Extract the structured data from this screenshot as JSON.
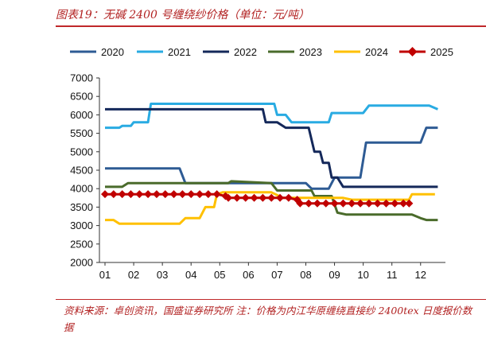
{
  "figure": {
    "title": "图表19：无碱 2400 号缠绕纱价格（单位：元/吨）",
    "source": "资料来源：卓创资讯，国盛证券研究所   注：价格为内江华原缠绕直接纱 2400tex 日度报价数据"
  },
  "chart_data": {
    "type": "line",
    "title": "",
    "xlabel": "",
    "ylabel": "",
    "x_tick_labels": [
      "01",
      "02",
      "03",
      "04",
      "05",
      "06",
      "07",
      "08",
      "09",
      "10",
      "11",
      "12"
    ],
    "ylim": [
      2000,
      7000
    ],
    "y_ticks": [
      2000,
      2500,
      3000,
      3500,
      4000,
      4500,
      5000,
      5500,
      6000,
      6500,
      7000
    ],
    "grid": false,
    "legend_position": "top",
    "series": [
      {
        "name": "2020",
        "color": "#2e5b94",
        "points": [
          [
            1.0,
            4550
          ],
          [
            3.6,
            4550
          ],
          [
            3.8,
            4150
          ],
          [
            7.2,
            4150
          ],
          [
            8.0,
            4150
          ],
          [
            8.2,
            4000
          ],
          [
            8.8,
            4000
          ],
          [
            9.0,
            4300
          ],
          [
            9.9,
            4300
          ],
          [
            10.1,
            5250
          ],
          [
            11.0,
            5250
          ],
          [
            12.0,
            5250
          ],
          [
            12.2,
            5650
          ],
          [
            12.6,
            5650
          ]
        ]
      },
      {
        "name": "2021",
        "color": "#29abe2",
        "points": [
          [
            1.0,
            5650
          ],
          [
            1.5,
            5650
          ],
          [
            1.6,
            5700
          ],
          [
            1.9,
            5700
          ],
          [
            2.0,
            5800
          ],
          [
            2.5,
            5800
          ],
          [
            2.6,
            6300
          ],
          [
            6.5,
            6300
          ],
          [
            6.9,
            6300
          ],
          [
            7.0,
            6000
          ],
          [
            7.3,
            6000
          ],
          [
            7.5,
            5800
          ],
          [
            8.0,
            5800
          ],
          [
            8.8,
            5800
          ],
          [
            8.9,
            6050
          ],
          [
            10.0,
            6050
          ],
          [
            10.2,
            6250
          ],
          [
            11.5,
            6250
          ],
          [
            12.3,
            6250
          ],
          [
            12.6,
            6150
          ]
        ]
      },
      {
        "name": "2022",
        "color": "#14285a",
        "points": [
          [
            1.0,
            6150
          ],
          [
            6.5,
            6150
          ],
          [
            6.6,
            5800
          ],
          [
            7.0,
            5800
          ],
          [
            7.3,
            5650
          ],
          [
            8.1,
            5650
          ],
          [
            8.3,
            5000
          ],
          [
            8.5,
            5000
          ],
          [
            8.6,
            4700
          ],
          [
            8.8,
            4700
          ],
          [
            8.9,
            4300
          ],
          [
            9.1,
            4300
          ],
          [
            9.3,
            4050
          ],
          [
            12.6,
            4050
          ]
        ]
      },
      {
        "name": "2023",
        "color": "#4a6b2b",
        "points": [
          [
            1.0,
            4050
          ],
          [
            1.6,
            4050
          ],
          [
            1.8,
            4150
          ],
          [
            5.3,
            4150
          ],
          [
            5.4,
            4200
          ],
          [
            6.8,
            4150
          ],
          [
            7.0,
            3950
          ],
          [
            8.2,
            3950
          ],
          [
            8.3,
            3800
          ],
          [
            8.9,
            3800
          ],
          [
            9.1,
            3350
          ],
          [
            9.4,
            3300
          ],
          [
            11.0,
            3300
          ],
          [
            11.7,
            3300
          ],
          [
            12.0,
            3200
          ],
          [
            12.2,
            3150
          ],
          [
            12.6,
            3150
          ]
        ]
      },
      {
        "name": "2024",
        "color": "#ffc000",
        "points": [
          [
            1.0,
            3150
          ],
          [
            1.3,
            3150
          ],
          [
            1.5,
            3050
          ],
          [
            3.6,
            3050
          ],
          [
            3.8,
            3200
          ],
          [
            4.3,
            3200
          ],
          [
            4.5,
            3500
          ],
          [
            4.8,
            3500
          ],
          [
            4.9,
            3850
          ],
          [
            5.1,
            3900
          ],
          [
            6.8,
            3900
          ],
          [
            7.2,
            3750
          ],
          [
            9.3,
            3750
          ],
          [
            9.6,
            3700
          ],
          [
            11.6,
            3700
          ],
          [
            11.7,
            3850
          ],
          [
            12.5,
            3850
          ]
        ]
      },
      {
        "name": "2025",
        "color": "#c00000",
        "marker": "diamond",
        "points": [
          [
            1.0,
            3850
          ],
          [
            1.3,
            3850
          ],
          [
            1.6,
            3850
          ],
          [
            1.9,
            3850
          ],
          [
            2.2,
            3850
          ],
          [
            2.5,
            3850
          ],
          [
            2.8,
            3850
          ],
          [
            3.1,
            3850
          ],
          [
            3.4,
            3850
          ],
          [
            3.7,
            3850
          ],
          [
            4.0,
            3850
          ],
          [
            4.3,
            3850
          ],
          [
            4.6,
            3850
          ],
          [
            4.9,
            3850
          ],
          [
            5.2,
            3800
          ],
          [
            5.3,
            3750
          ],
          [
            5.6,
            3750
          ],
          [
            5.9,
            3750
          ],
          [
            6.2,
            3750
          ],
          [
            6.5,
            3750
          ],
          [
            6.8,
            3750
          ],
          [
            7.1,
            3750
          ],
          [
            7.4,
            3750
          ],
          [
            7.7,
            3700
          ],
          [
            7.8,
            3600
          ],
          [
            8.1,
            3600
          ],
          [
            8.4,
            3600
          ],
          [
            8.7,
            3600
          ],
          [
            9.0,
            3600
          ],
          [
            9.3,
            3600
          ],
          [
            9.6,
            3600
          ],
          [
            9.9,
            3600
          ],
          [
            10.2,
            3600
          ],
          [
            10.5,
            3600
          ],
          [
            10.8,
            3600
          ],
          [
            11.1,
            3600
          ],
          [
            11.4,
            3600
          ],
          [
            11.6,
            3600
          ]
        ]
      }
    ]
  }
}
